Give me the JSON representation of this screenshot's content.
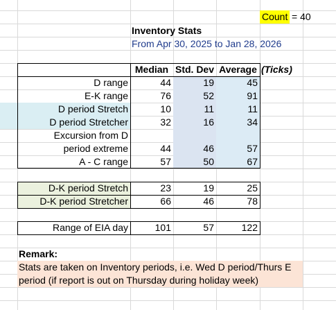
{
  "count": {
    "label": "Count",
    "value": "= 40"
  },
  "title": "Inventory Stats",
  "date_range": "From Apr 30, 2025 to Jan 28, 2026",
  "headers": {
    "median": "Median",
    "std": "Std. Dev",
    "avg": "Average",
    "unit": "(Ticks)"
  },
  "rows": [
    {
      "label": "D range",
      "median": "44",
      "std": "19",
      "avg": "45"
    },
    {
      "label": "E-K range",
      "median": "76",
      "std": "52",
      "avg": "91"
    },
    {
      "label": "D period Stretch",
      "median": "10",
      "std": "11",
      "avg": "11"
    },
    {
      "label": "D period Stretcher",
      "median": "32",
      "std": "16",
      "avg": "34"
    },
    {
      "label": "Excursion from D",
      "median": "",
      "std": "",
      "avg": ""
    },
    {
      "label": "period extreme",
      "median": "44",
      "std": "46",
      "avg": "57"
    },
    {
      "label": "A - C range",
      "median": "57",
      "std": "50",
      "avg": "67"
    }
  ],
  "dk_rows": [
    {
      "label": "D-K period Stretch",
      "median": "23",
      "std": "19",
      "avg": "25"
    },
    {
      "label": "D-K period Stretcher",
      "median": "66",
      "std": "46",
      "avg": "78"
    }
  ],
  "eia_row": {
    "label": "Range of EIA day",
    "median": "101",
    "std": "57",
    "avg": "122"
  },
  "remark": {
    "title": "Remark:",
    "line1": "Stats are taken on Inventory periods, i.e. Wed D period/Thurs E",
    "line2": "period (if report is out on Thursday during holiday week)"
  },
  "colors": {
    "count_highlight": "#ffff00",
    "date_text": "#1f3b8c",
    "std_fill": "#dbe4f1",
    "avg_fill": "#dcebf5",
    "label_fill_blue": "#daeef3",
    "dk_fill": "#ebf1de",
    "remark_fill": "#fce4d6",
    "gridline": "#d9d9d9"
  }
}
